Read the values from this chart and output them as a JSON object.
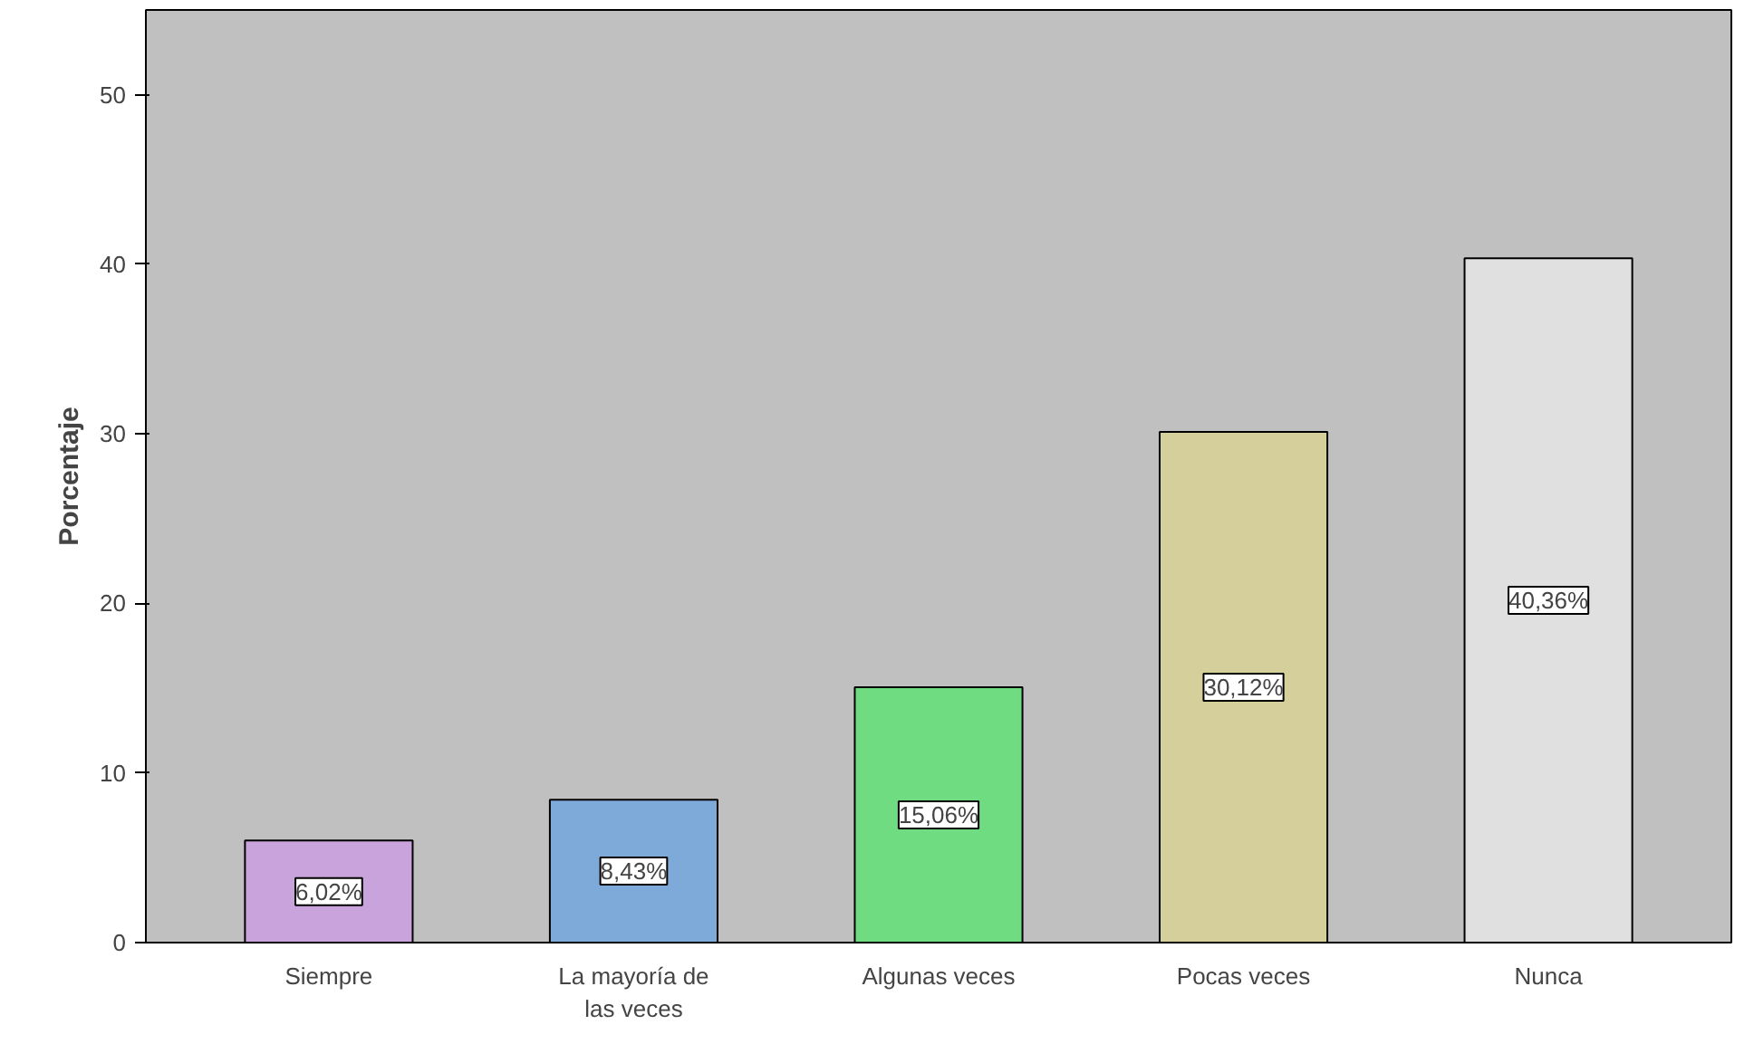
{
  "chart_data": {
    "type": "bar",
    "ylabel": "Porcentaje",
    "categories": [
      "Siempre",
      "La mayoría de las veces",
      "Algunas veces",
      "Pocas veces",
      "Nunca"
    ],
    "values": [
      6.02,
      8.43,
      15.06,
      30.12,
      40.36
    ],
    "colors": [
      "#c9a3dc",
      "#7eaad9",
      "#6fdc82",
      "#d4cf9b",
      "#e0e0e0"
    ],
    "value_labels": [
      "6,02%",
      "8,43%",
      "15,06%",
      "30,12%",
      "40,36%"
    ],
    "ylim": [
      0,
      55
    ],
    "yticks": [
      0,
      10,
      20,
      30,
      40,
      50
    ],
    "grid": false
  }
}
